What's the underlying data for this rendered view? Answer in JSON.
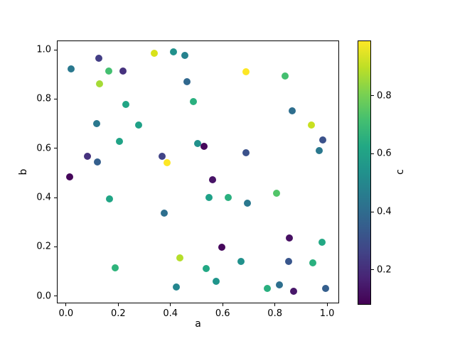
{
  "chart_data": {
    "type": "scatter",
    "title": "",
    "xlabel": "a",
    "ylabel": "b",
    "colorbar_label": "c",
    "colormap": "viridis",
    "grid": false,
    "xlim": [
      -0.035,
      1.046
    ],
    "ylim": [
      -0.03,
      1.038
    ],
    "xticks": [
      0.0,
      0.2,
      0.4,
      0.6,
      0.8,
      1.0
    ],
    "yticks": [
      0.0,
      0.2,
      0.4,
      0.6,
      0.8,
      1.0
    ],
    "colorbar_ticks": [
      0.2,
      0.4,
      0.6,
      0.8
    ],
    "c_range": [
      0.085,
      0.99
    ],
    "colormap_stops": [
      {
        "t": 0.0,
        "color": "#440154"
      },
      {
        "t": 0.1,
        "color": "#482475"
      },
      {
        "t": 0.2,
        "color": "#414487"
      },
      {
        "t": 0.3,
        "color": "#355f8d"
      },
      {
        "t": 0.4,
        "color": "#2a788e"
      },
      {
        "t": 0.5,
        "color": "#21918c"
      },
      {
        "t": 0.6,
        "color": "#22a884"
      },
      {
        "t": 0.7,
        "color": "#44bf70"
      },
      {
        "t": 0.8,
        "color": "#7ad151"
      },
      {
        "t": 0.9,
        "color": "#bddf26"
      },
      {
        "t": 1.0,
        "color": "#fde725"
      }
    ],
    "points": [
      {
        "x": 0.125,
        "y": 0.967,
        "c": 0.24,
        "color": "#433e85"
      },
      {
        "x": 0.02,
        "y": 0.922,
        "c": 0.45,
        "color": "#2a788e"
      },
      {
        "x": 0.165,
        "y": 0.913,
        "c": 0.72,
        "color": "#44bf70"
      },
      {
        "x": 0.218,
        "y": 0.913,
        "c": 0.19,
        "color": "#46327e"
      },
      {
        "x": 0.337,
        "y": 0.985,
        "c": 0.93,
        "color": "#d8e219"
      },
      {
        "x": 0.129,
        "y": 0.861,
        "c": 0.85,
        "color": "#a5db36"
      },
      {
        "x": 0.228,
        "y": 0.778,
        "c": 0.61,
        "color": "#21a585"
      },
      {
        "x": 0.117,
        "y": 0.7,
        "c": 0.45,
        "color": "#2a788e"
      },
      {
        "x": 0.278,
        "y": 0.695,
        "c": 0.59,
        "color": "#1fa187"
      },
      {
        "x": 0.412,
        "y": 0.991,
        "c": 0.54,
        "color": "#21918c"
      },
      {
        "x": 0.455,
        "y": 0.977,
        "c": 0.47,
        "color": "#26828e"
      },
      {
        "x": 0.69,
        "y": 0.912,
        "c": 0.99,
        "color": "#fde725"
      },
      {
        "x": 0.463,
        "y": 0.87,
        "c": 0.4,
        "color": "#31688e"
      },
      {
        "x": 0.487,
        "y": 0.789,
        "c": 0.66,
        "color": "#2ab07f"
      },
      {
        "x": 0.839,
        "y": 0.895,
        "c": 0.72,
        "color": "#44bf70"
      },
      {
        "x": 0.865,
        "y": 0.753,
        "c": 0.42,
        "color": "#2e6e8e"
      },
      {
        "x": 0.941,
        "y": 0.695,
        "c": 0.9,
        "color": "#c8e020"
      },
      {
        "x": 0.204,
        "y": 0.627,
        "c": 0.6,
        "color": "#20a386"
      },
      {
        "x": 0.083,
        "y": 0.568,
        "c": 0.19,
        "color": "#46327e"
      },
      {
        "x": 0.121,
        "y": 0.543,
        "c": 0.36,
        "color": "#355f8d"
      },
      {
        "x": 0.015,
        "y": 0.483,
        "c": 0.11,
        "color": "#45065a"
      },
      {
        "x": 0.167,
        "y": 0.393,
        "c": 0.61,
        "color": "#21a585"
      },
      {
        "x": 0.503,
        "y": 0.62,
        "c": 0.54,
        "color": "#21918c"
      },
      {
        "x": 0.528,
        "y": 0.608,
        "c": 0.11,
        "color": "#46085c"
      },
      {
        "x": 0.369,
        "y": 0.567,
        "c": 0.27,
        "color": "#414487"
      },
      {
        "x": 0.388,
        "y": 0.542,
        "c": 0.99,
        "color": "#fde725"
      },
      {
        "x": 0.69,
        "y": 0.582,
        "c": 0.31,
        "color": "#3b528b"
      },
      {
        "x": 0.561,
        "y": 0.471,
        "c": 0.14,
        "color": "#481467"
      },
      {
        "x": 0.548,
        "y": 0.4,
        "c": 0.59,
        "color": "#1fa188"
      },
      {
        "x": 0.62,
        "y": 0.399,
        "c": 0.66,
        "color": "#2ab07f"
      },
      {
        "x": 0.694,
        "y": 0.376,
        "c": 0.45,
        "color": "#2a788e"
      },
      {
        "x": 0.376,
        "y": 0.336,
        "c": 0.43,
        "color": "#2e6f8e"
      },
      {
        "x": 0.983,
        "y": 0.634,
        "c": 0.31,
        "color": "#3b528b"
      },
      {
        "x": 0.97,
        "y": 0.592,
        "c": 0.45,
        "color": "#2a788e"
      },
      {
        "x": 0.806,
        "y": 0.418,
        "c": 0.75,
        "color": "#52c569"
      },
      {
        "x": 0.188,
        "y": 0.113,
        "c": 0.67,
        "color": "#2fb47c"
      },
      {
        "x": 0.598,
        "y": 0.199,
        "c": 0.11,
        "color": "#46085c"
      },
      {
        "x": 0.436,
        "y": 0.154,
        "c": 0.87,
        "color": "#b5de2b"
      },
      {
        "x": 0.67,
        "y": 0.139,
        "c": 0.54,
        "color": "#21918c"
      },
      {
        "x": 0.537,
        "y": 0.11,
        "c": 0.63,
        "color": "#22a884"
      },
      {
        "x": 0.574,
        "y": 0.06,
        "c": 0.56,
        "color": "#1f958b"
      },
      {
        "x": 0.422,
        "y": 0.035,
        "c": 0.49,
        "color": "#24868e"
      },
      {
        "x": 0.855,
        "y": 0.235,
        "c": 0.13,
        "color": "#471063"
      },
      {
        "x": 0.982,
        "y": 0.219,
        "c": 0.63,
        "color": "#22a884"
      },
      {
        "x": 0.853,
        "y": 0.139,
        "c": 0.33,
        "color": "#39568c"
      },
      {
        "x": 0.945,
        "y": 0.134,
        "c": 0.66,
        "color": "#2ab07f"
      },
      {
        "x": 0.771,
        "y": 0.031,
        "c": 0.66,
        "color": "#29af7f"
      },
      {
        "x": 0.818,
        "y": 0.045,
        "c": 0.43,
        "color": "#2e6f8e"
      },
      {
        "x": 0.871,
        "y": 0.02,
        "c": 0.15,
        "color": "#48186a"
      },
      {
        "x": 0.995,
        "y": 0.031,
        "c": 0.36,
        "color": "#355f8d"
      }
    ]
  }
}
